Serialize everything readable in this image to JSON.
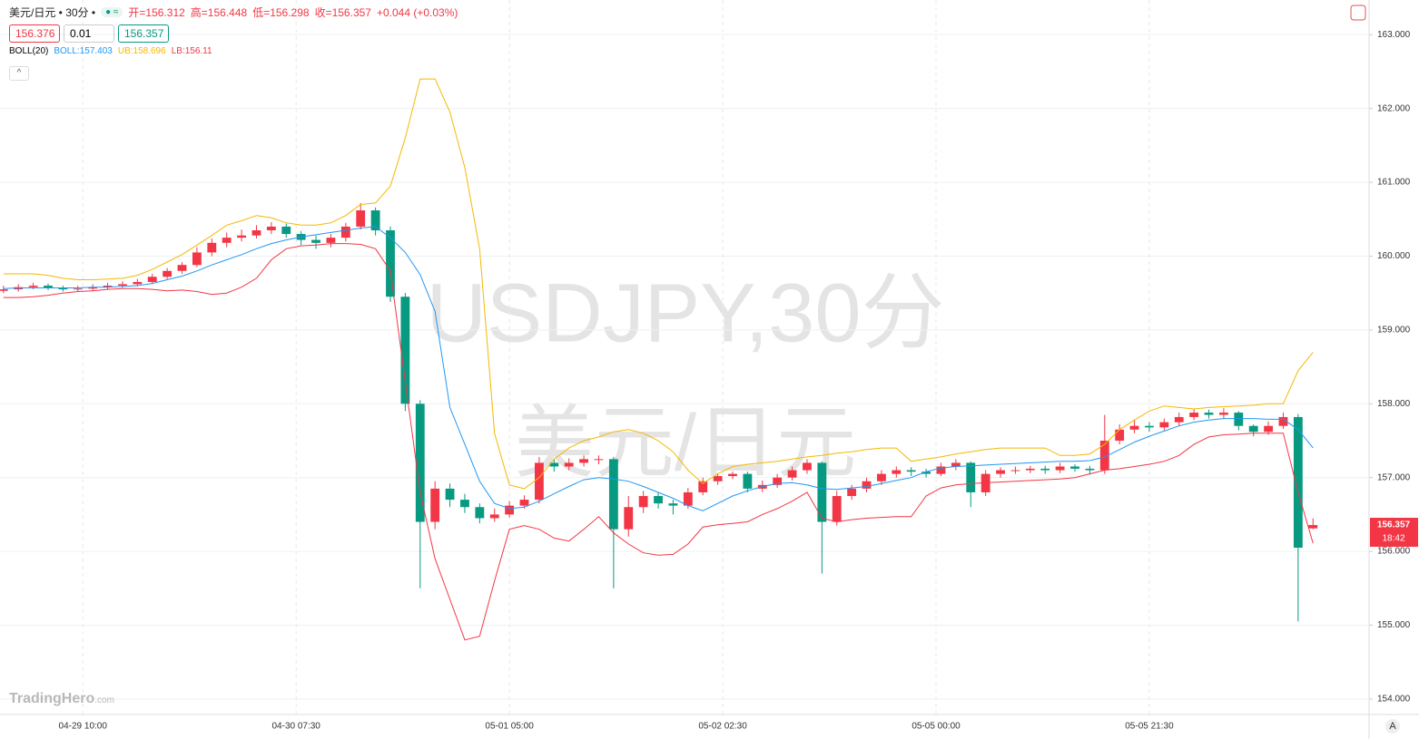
{
  "header": {
    "symbol": "美元/日元 • 30分 •",
    "ohlc": [
      "开=156.312",
      "高=156.448",
      "低=156.298",
      "收=156.357"
    ],
    "change": "+0.044 (+0.03%)",
    "inputs": [
      "156.376",
      "0.01",
      "156.357"
    ],
    "indicator": "BOLL(20)",
    "logo": [
      "TradingHero",
      ".com"
    ],
    "countdown": "18:42",
    "scale_button": "A"
  },
  "chart_data": {
    "type": "candlestick",
    "title": "USDJPY,30分",
    "subtitle": "美元/日元",
    "x": [
      0,
      3,
      6,
      9,
      12,
      15,
      18,
      21,
      24,
      27,
      30,
      33,
      36,
      39,
      42,
      45,
      48,
      51,
      54,
      57,
      60,
      63,
      66,
      69,
      72,
      75,
      78,
      81,
      84,
      87,
      90,
      93,
      96,
      99,
      102,
      105,
      108,
      111,
      114,
      117,
      120,
      123,
      126,
      129,
      132,
      135,
      138,
      141,
      144,
      147,
      150,
      153,
      156,
      159,
      162,
      165,
      168,
      171,
      174,
      177,
      180,
      183,
      186,
      189,
      192,
      195,
      198,
      201,
      204,
      207,
      210,
      213,
      216,
      219,
      222,
      225,
      228,
      231,
      234,
      237,
      240,
      243,
      246,
      249,
      252,
      255,
      258,
      261,
      264
    ],
    "open": [
      159.53,
      159.55,
      159.58,
      159.6,
      159.57,
      159.55,
      159.56,
      159.58,
      159.6,
      159.62,
      159.65,
      159.72,
      159.8,
      159.88,
      160.05,
      160.18,
      160.25,
      160.28,
      160.35,
      160.4,
      160.3,
      160.22,
      160.18,
      160.25,
      160.4,
      160.62,
      160.35,
      159.45,
      158.0,
      156.4,
      156.85,
      156.7,
      156.6,
      156.45,
      156.5,
      156.62,
      156.7,
      157.2,
      157.15,
      157.2,
      157.25,
      157.25,
      156.3,
      156.6,
      156.75,
      156.65,
      156.62,
      156.8,
      156.95,
      157.02,
      157.05,
      156.85,
      156.9,
      157.0,
      157.1,
      157.2,
      156.4,
      156.75,
      156.85,
      156.95,
      157.05,
      157.1,
      157.08,
      157.05,
      157.15,
      157.2,
      156.8,
      157.05,
      157.1,
      157.1,
      157.12,
      157.1,
      157.15,
      157.12,
      157.1,
      157.5,
      157.65,
      157.7,
      157.68,
      157.75,
      157.82,
      157.88,
      157.85,
      157.88,
      157.7,
      157.62,
      157.7,
      157.82,
      156.312
    ],
    "high": [
      159.6,
      159.62,
      159.64,
      159.63,
      159.6,
      159.6,
      159.62,
      159.64,
      159.66,
      159.69,
      159.76,
      159.84,
      159.92,
      160.12,
      160.24,
      160.32,
      160.36,
      160.42,
      160.46,
      160.44,
      160.34,
      160.28,
      160.3,
      160.45,
      160.72,
      160.66,
      160.4,
      159.5,
      158.05,
      156.95,
      156.92,
      156.78,
      156.65,
      156.58,
      156.68,
      156.76,
      157.28,
      157.25,
      157.26,
      157.3,
      157.3,
      157.28,
      156.75,
      156.82,
      156.8,
      156.7,
      156.86,
      157.0,
      157.06,
      157.08,
      157.08,
      156.96,
      157.05,
      157.15,
      157.25,
      157.22,
      156.82,
      156.9,
      157.0,
      157.1,
      157.15,
      157.14,
      157.12,
      157.2,
      157.25,
      157.22,
      157.1,
      157.14,
      157.15,
      157.16,
      157.16,
      157.2,
      157.18,
      157.16,
      157.85,
      157.72,
      157.78,
      157.75,
      157.8,
      157.88,
      157.93,
      157.92,
      157.94,
      157.9,
      157.72,
      157.76,
      157.88,
      157.86,
      156.448
    ],
    "low": [
      159.5,
      159.52,
      159.55,
      159.54,
      159.52,
      159.52,
      159.53,
      159.55,
      159.57,
      159.59,
      159.62,
      159.69,
      159.76,
      159.85,
      160.0,
      160.12,
      160.2,
      160.24,
      160.3,
      160.25,
      160.15,
      160.1,
      160.12,
      160.2,
      160.36,
      160.28,
      159.38,
      157.9,
      155.5,
      156.3,
      156.6,
      156.52,
      156.38,
      156.4,
      156.46,
      156.58,
      156.65,
      157.08,
      157.1,
      157.15,
      157.18,
      155.5,
      156.2,
      156.52,
      156.58,
      156.5,
      156.58,
      156.76,
      156.9,
      156.98,
      156.8,
      156.8,
      156.86,
      156.96,
      157.05,
      155.7,
      156.35,
      156.7,
      156.8,
      156.9,
      157.0,
      157.02,
      157.0,
      157.02,
      157.1,
      156.6,
      156.75,
      157.0,
      157.05,
      157.06,
      157.05,
      157.06,
      157.08,
      157.04,
      157.05,
      157.45,
      157.6,
      157.62,
      157.64,
      157.7,
      157.78,
      157.8,
      157.8,
      157.64,
      157.56,
      157.58,
      157.66,
      155.05,
      156.298
    ],
    "close": [
      159.55,
      159.58,
      159.6,
      159.57,
      159.55,
      159.56,
      159.58,
      159.6,
      159.62,
      159.65,
      159.72,
      159.8,
      159.88,
      160.05,
      160.18,
      160.25,
      160.28,
      160.35,
      160.4,
      160.3,
      160.22,
      160.18,
      160.25,
      160.4,
      160.62,
      160.35,
      159.45,
      158.0,
      156.4,
      156.85,
      156.7,
      156.6,
      156.45,
      156.5,
      156.62,
      156.7,
      157.2,
      157.15,
      157.2,
      157.25,
      157.25,
      156.3,
      156.6,
      156.75,
      156.65,
      156.62,
      156.8,
      156.95,
      157.02,
      157.05,
      156.85,
      156.9,
      157.0,
      157.1,
      157.2,
      156.4,
      156.75,
      156.85,
      156.95,
      157.05,
      157.1,
      157.08,
      157.05,
      157.15,
      157.2,
      156.8,
      157.05,
      157.1,
      157.1,
      157.12,
      157.1,
      157.15,
      157.12,
      157.1,
      157.5,
      157.65,
      157.7,
      157.68,
      157.75,
      157.82,
      157.88,
      157.85,
      157.88,
      157.7,
      157.62,
      157.7,
      157.82,
      156.05,
      156.357
    ],
    "up_color": "#f23645",
    "down_color": "#089981",
    "series": [
      {
        "name": "BOLL:157.403",
        "color": "#2196f3",
        "values": [
          159.56,
          159.57,
          159.57,
          159.57,
          159.57,
          159.57,
          159.58,
          159.58,
          159.59,
          159.6,
          159.63,
          159.68,
          159.73,
          159.8,
          159.88,
          159.95,
          160.02,
          160.1,
          160.17,
          160.22,
          160.26,
          160.29,
          160.32,
          160.35,
          160.38,
          160.4,
          160.25,
          160.05,
          159.75,
          159.25,
          157.95,
          157.45,
          156.95,
          156.65,
          156.58,
          156.6,
          156.68,
          156.78,
          156.88,
          156.97,
          157.0,
          156.98,
          156.95,
          156.88,
          156.8,
          156.72,
          156.62,
          156.55,
          156.65,
          156.75,
          156.82,
          156.88,
          156.92,
          156.93,
          156.9,
          156.85,
          156.84,
          156.86,
          156.88,
          156.92,
          156.96,
          157.0,
          157.08,
          157.13,
          157.15,
          157.16,
          157.17,
          157.18,
          157.19,
          157.2,
          157.21,
          157.22,
          157.22,
          157.23,
          157.28,
          157.38,
          157.48,
          157.56,
          157.63,
          157.7,
          157.75,
          157.78,
          157.8,
          157.8,
          157.8,
          157.79,
          157.79,
          157.65,
          157.403
        ]
      },
      {
        "name": "UB:158.696",
        "color": "#f5b800",
        "values": [
          159.76,
          159.76,
          159.76,
          159.74,
          159.7,
          159.68,
          159.68,
          159.69,
          159.7,
          159.74,
          159.82,
          159.92,
          160.02,
          160.15,
          160.28,
          160.42,
          160.48,
          160.55,
          160.52,
          160.45,
          160.42,
          160.42,
          160.45,
          160.55,
          160.7,
          160.72,
          160.95,
          161.6,
          162.4,
          162.4,
          161.95,
          161.2,
          160.1,
          157.6,
          156.9,
          156.85,
          157.0,
          157.25,
          157.4,
          157.5,
          157.55,
          157.62,
          157.65,
          157.6,
          157.5,
          157.35,
          157.1,
          156.92,
          157.05,
          157.15,
          157.18,
          157.2,
          157.22,
          157.25,
          157.28,
          157.3,
          157.33,
          157.35,
          157.38,
          157.4,
          157.4,
          157.22,
          157.25,
          157.28,
          157.32,
          157.35,
          157.38,
          157.4,
          157.4,
          157.4,
          157.4,
          157.3,
          157.3,
          157.32,
          157.45,
          157.65,
          157.78,
          157.9,
          157.97,
          157.95,
          157.93,
          157.95,
          157.96,
          157.97,
          157.98,
          158.0,
          158.0,
          158.45,
          158.696
        ]
      },
      {
        "name": "LB:156.11",
        "color": "#f23645",
        "values": [
          159.44,
          159.44,
          159.45,
          159.47,
          159.5,
          159.52,
          159.53,
          159.55,
          159.56,
          159.56,
          159.55,
          159.53,
          159.54,
          159.52,
          159.48,
          159.5,
          159.58,
          159.7,
          159.95,
          160.1,
          160.14,
          160.15,
          160.17,
          160.17,
          160.16,
          160.1,
          159.8,
          158.3,
          156.8,
          155.9,
          155.35,
          154.8,
          154.85,
          155.6,
          156.3,
          156.35,
          156.3,
          156.18,
          156.14,
          156.3,
          156.47,
          156.25,
          156.1,
          155.98,
          155.95,
          155.96,
          156.1,
          156.33,
          156.36,
          156.38,
          156.4,
          156.5,
          156.58,
          156.68,
          156.8,
          156.45,
          156.4,
          156.43,
          156.45,
          156.46,
          156.47,
          156.47,
          156.75,
          156.86,
          156.9,
          156.92,
          156.93,
          156.94,
          156.95,
          156.96,
          156.97,
          156.98,
          157.0,
          157.05,
          157.1,
          157.12,
          157.15,
          157.18,
          157.22,
          157.3,
          157.45,
          157.55,
          157.58,
          157.59,
          157.6,
          157.6,
          157.6,
          156.8,
          156.11
        ]
      }
    ],
    "last_price": 156.357,
    "xlim": [
      -0.7,
      275.3
    ],
    "xticks": [
      {
        "value": 16,
        "label": "04-29 10:00"
      },
      {
        "value": 59,
        "label": "04-30 07:30"
      },
      {
        "value": 102,
        "label": "05-01 05:00"
      },
      {
        "value": 145,
        "label": "05-02 02:30"
      },
      {
        "value": 188,
        "label": "05-05 00:00"
      },
      {
        "value": 231,
        "label": "05-05 21:30"
      }
    ],
    "ylim": [
      153.79,
      163.47
    ],
    "yticks": [
      {
        "value": 154,
        "label": "154.000"
      },
      {
        "value": 155,
        "label": "155.000"
      },
      {
        "value": 156,
        "label": "156.000"
      },
      {
        "value": 157,
        "label": "157.000"
      },
      {
        "value": 158,
        "label": "158.000"
      },
      {
        "value": 159,
        "label": "159.000"
      },
      {
        "value": 160,
        "label": "160.000"
      },
      {
        "value": 161,
        "label": "161.000"
      },
      {
        "value": 162,
        "label": "162.000"
      },
      {
        "value": 163,
        "label": "163.000"
      }
    ],
    "grid": true
  }
}
